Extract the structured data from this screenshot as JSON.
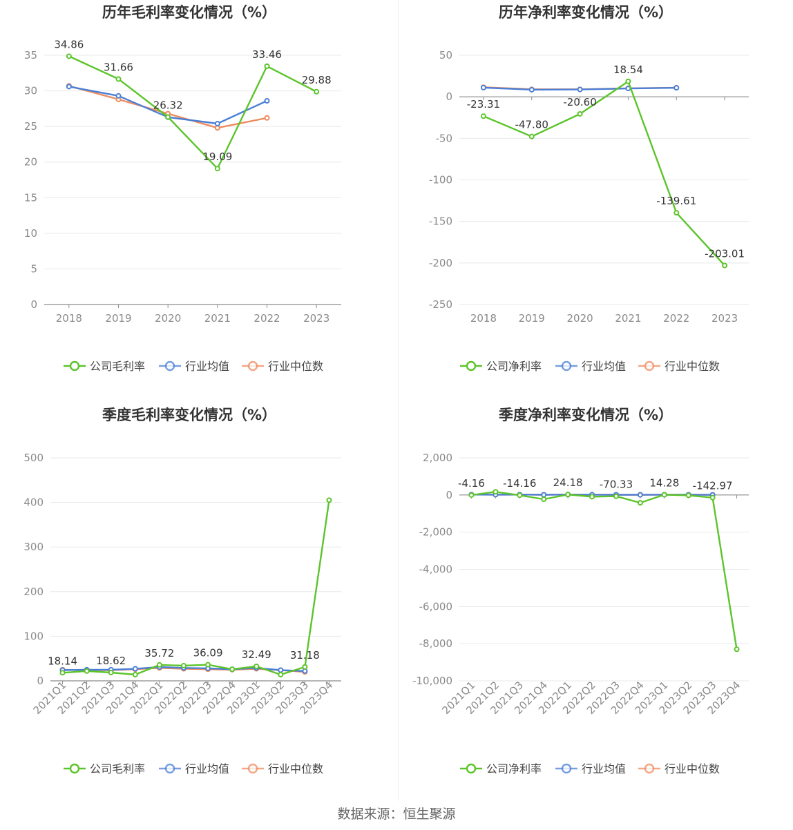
{
  "colors": {
    "company": "#5cc42b",
    "industry_avg": "#4a7fd6",
    "industry_median": "#f08a5d",
    "grid": "#e8e8ee",
    "axis": "#8c8c8c",
    "tick_text": "#8a8a8a",
    "title_text": "#333333",
    "label_text": "#333333"
  },
  "source_text": "数据来源：恒生聚源",
  "chart_data": [
    {
      "type": "line",
      "title": "历年毛利率变化情况（%）",
      "categories": [
        "2018",
        "2019",
        "2020",
        "2021",
        "2022",
        "2023"
      ],
      "ylim": [
        0,
        35
      ],
      "yticks": [
        0,
        5,
        10,
        15,
        20,
        25,
        30,
        35
      ],
      "ytick_labels": [
        "0",
        "5",
        "10",
        "15",
        "20",
        "25",
        "30",
        "35"
      ],
      "tick_rotation": 0,
      "grid": true,
      "legend_position": "bottom",
      "series": [
        {
          "name": "公司毛利率",
          "key": "company",
          "values": [
            34.86,
            31.66,
            26.32,
            19.09,
            33.46,
            29.88
          ],
          "labels": [
            "34.86",
            "31.66",
            "26.32",
            "19.09",
            "33.46",
            "29.88"
          ]
        },
        {
          "name": "行业均值",
          "key": "industry_avg",
          "values": [
            30.6,
            29.3,
            26.3,
            25.4,
            28.6,
            null
          ]
        },
        {
          "name": "行业中位数",
          "key": "industry_median",
          "values": [
            30.7,
            28.8,
            26.8,
            24.8,
            26.2,
            null
          ]
        }
      ]
    },
    {
      "type": "line",
      "title": "历年净利率变化情况（%）",
      "categories": [
        "2018",
        "2019",
        "2020",
        "2021",
        "2022",
        "2023"
      ],
      "ylim": [
        -250,
        50
      ],
      "yticks": [
        -250,
        -200,
        -150,
        -100,
        -50,
        0,
        50
      ],
      "ytick_labels": [
        "-250",
        "-200",
        "-150",
        "-100",
        "-50",
        "0",
        "50"
      ],
      "tick_rotation": 0,
      "grid": true,
      "legend_position": "bottom",
      "series": [
        {
          "name": "公司净利率",
          "key": "company",
          "values": [
            -23.31,
            -47.8,
            -20.6,
            18.54,
            -139.61,
            -203.01
          ],
          "labels": [
            "-23.31",
            "-47.80",
            "-20.60",
            "18.54",
            "-139.61",
            "-203.01"
          ]
        },
        {
          "name": "行业均值",
          "key": "industry_avg",
          "values": [
            11.0,
            8.5,
            8.8,
            10.0,
            10.8,
            null
          ]
        },
        {
          "name": "行业中位数",
          "key": "industry_median",
          "values": [
            11.5,
            9.0,
            9.0,
            10.2,
            11.0,
            null
          ]
        }
      ]
    },
    {
      "type": "line",
      "title": "季度毛利率变化情况（%）",
      "categories": [
        "2021Q1",
        "2021Q2",
        "2021Q3",
        "2021Q4",
        "2022Q1",
        "2022Q2",
        "2022Q3",
        "2022Q4",
        "2023Q1",
        "2023Q2",
        "2023Q3",
        "2023Q4"
      ],
      "ylim": [
        0,
        500
      ],
      "yticks": [
        0,
        100,
        200,
        300,
        400,
        500
      ],
      "ytick_labels": [
        "0",
        "100",
        "200",
        "300",
        "400",
        "500"
      ],
      "tick_rotation": -45,
      "grid": true,
      "legend_position": "bottom",
      "series": [
        {
          "name": "公司毛利率",
          "key": "company",
          "values": [
            18.14,
            22.0,
            18.62,
            14.0,
            35.72,
            34.0,
            36.09,
            26.0,
            32.49,
            14.0,
            31.18,
            405.0
          ],
          "labels": [
            "18.14",
            null,
            "18.62",
            null,
            "35.72",
            null,
            "36.09",
            null,
            "32.49",
            null,
            "31.18",
            null
          ]
        },
        {
          "name": "行业均值",
          "key": "industry_avg",
          "values": [
            24.0,
            25.0,
            25.0,
            27.0,
            31.0,
            29.0,
            28.0,
            26.0,
            29.0,
            24.0,
            22.0,
            null
          ]
        },
        {
          "name": "行业中位数",
          "key": "industry_median",
          "values": [
            25.0,
            24.0,
            24.0,
            26.0,
            29.0,
            27.0,
            26.0,
            25.0,
            27.0,
            24.0,
            20.0,
            null
          ]
        }
      ]
    },
    {
      "type": "line",
      "title": "季度净利率变化情况（%）",
      "categories": [
        "2021Q1",
        "2021Q2",
        "2021Q3",
        "2021Q4",
        "2022Q1",
        "2022Q2",
        "2022Q3",
        "2022Q4",
        "2023Q1",
        "2023Q2",
        "2023Q3",
        "2023Q4"
      ],
      "ylim": [
        -10000,
        2000
      ],
      "yticks": [
        -10000,
        -8000,
        -6000,
        -4000,
        -2000,
        0,
        2000
      ],
      "ytick_labels": [
        "-10,000",
        "-8,000",
        "-6,000",
        "-4,000",
        "-2,000",
        "0",
        "2,000"
      ],
      "tick_rotation": -45,
      "grid": true,
      "legend_position": "bottom",
      "series": [
        {
          "name": "公司净利率",
          "key": "company",
          "values": [
            -4.16,
            170.0,
            -14.16,
            -230.0,
            24.18,
            -90.0,
            -70.33,
            -420.0,
            14.28,
            -20.0,
            -142.97,
            -8300.0
          ],
          "labels": [
            "-4.16",
            null,
            "-14.16",
            null,
            "24.18",
            null,
            "-70.33",
            null,
            "14.28",
            null,
            "-142.97",
            null
          ]
        },
        {
          "name": "行业均值",
          "key": "industry_avg",
          "values": [
            20.0,
            15.0,
            18.0,
            12.0,
            20.0,
            15.0,
            12.0,
            10.0,
            15.0,
            12.0,
            10.0,
            null
          ]
        },
        {
          "name": "行业中位数",
          "key": "industry_median",
          "values": [
            22.0,
            16.0,
            18.0,
            14.0,
            22.0,
            16.0,
            14.0,
            12.0,
            16.0,
            12.0,
            12.0,
            null
          ]
        }
      ]
    }
  ]
}
